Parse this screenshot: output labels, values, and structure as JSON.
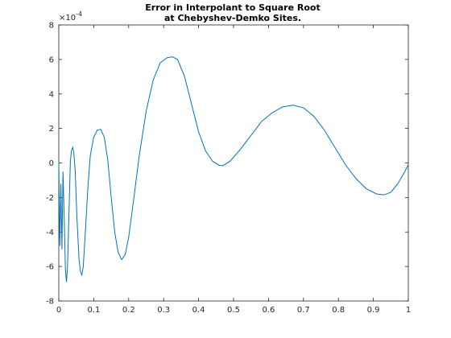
{
  "chart_data": {
    "type": "line",
    "title": [
      "Error in Interpolant to Square Root",
      "at Chebyshev-Demko Sites."
    ],
    "y_multiplier": {
      "base": "×10",
      "exponent": "-4"
    },
    "x": [
      0,
      0.003,
      0.006,
      0.009,
      0.012,
      0.016,
      0.019,
      0.022,
      0.025,
      0.029,
      0.033,
      0.036,
      0.04,
      0.043,
      0.047,
      0.052,
      0.058,
      0.062,
      0.066,
      0.07,
      0.076,
      0.083,
      0.09,
      0.1,
      0.11,
      0.12,
      0.13,
      0.14,
      0.15,
      0.16,
      0.17,
      0.18,
      0.19,
      0.2,
      0.215,
      0.23,
      0.25,
      0.27,
      0.29,
      0.31,
      0.325,
      0.34,
      0.36,
      0.38,
      0.4,
      0.42,
      0.44,
      0.46,
      0.47,
      0.49,
      0.52,
      0.55,
      0.58,
      0.61,
      0.64,
      0.67,
      0.7,
      0.73,
      0.76,
      0.79,
      0.82,
      0.85,
      0.88,
      0.91,
      0.93,
      0.95,
      0.97,
      0.99,
      1
    ],
    "series": [
      {
        "color": "#0072bd",
        "values": [
          0,
          -4.8,
          -1.2,
          -5.0,
          -0.5,
          -3.5,
          -6.2,
          -6.9,
          -6.0,
          -3.0,
          0,
          0.7,
          0.9,
          0.6,
          -0.5,
          -3.2,
          -5.6,
          -6.3,
          -6.5,
          -6.0,
          -4.0,
          -1.5,
          0.4,
          1.5,
          1.9,
          1.95,
          1.5,
          0.2,
          -2.0,
          -4.0,
          -5.2,
          -5.6,
          -5.3,
          -4.3,
          -2.0,
          0.4,
          3.0,
          4.8,
          5.8,
          6.1,
          6.15,
          6.0,
          5.0,
          3.4,
          1.8,
          0.7,
          0.1,
          -0.15,
          -0.15,
          0.1,
          0.8,
          1.6,
          2.4,
          2.9,
          3.25,
          3.35,
          3.2,
          2.7,
          1.9,
          0.9,
          -0.1,
          -0.9,
          -1.5,
          -1.8,
          -1.85,
          -1.7,
          -1.2,
          -0.5,
          -0.1
        ]
      }
    ],
    "xlim": [
      0,
      1
    ],
    "xticks": [
      0,
      0.1,
      0.2,
      0.3,
      0.4,
      0.5,
      0.6,
      0.7,
      0.8,
      0.9,
      1
    ],
    "ylim": [
      -8,
      8
    ],
    "yticks": [
      -8,
      -6,
      -4,
      -2,
      0,
      2,
      4,
      6,
      8
    ],
    "grid": false
  }
}
